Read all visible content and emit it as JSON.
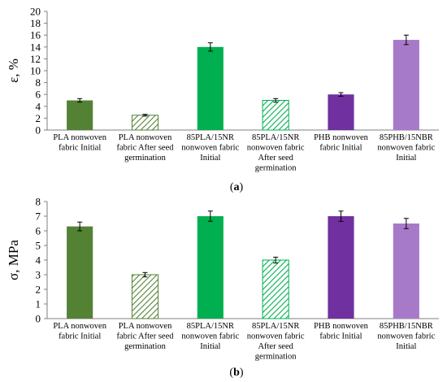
{
  "chart_data": [
    {
      "type": "bar",
      "panel_label": "(a)",
      "ylabel": "ε, %",
      "ylim": [
        0,
        20
      ],
      "ytick_step": 2,
      "grid": false,
      "categories": [
        [
          "PLA nonwoven",
          "fabric  Initial"
        ],
        [
          "PLA nonwoven",
          "fabric After seed",
          "germination"
        ],
        [
          "85PLA/15NR",
          "nonwoven fabric",
          "Initial"
        ],
        [
          "85PLA/15NR",
          "nonwoven fabric",
          "After seed",
          "germination"
        ],
        [
          "PHB nonwoven",
          "fabric  Initial"
        ],
        [
          "85PHB/15NBR",
          "nonwoven fabric",
          "Initial"
        ]
      ],
      "values": [
        5.0,
        2.5,
        14.0,
        5.0,
        6.0,
        15.2
      ],
      "errors": [
        0.3,
        0.15,
        0.7,
        0.3,
        0.3,
        0.8
      ]
    },
    {
      "type": "bar",
      "panel_label": "(b)",
      "ylabel": "σ, MPa",
      "ylim": [
        0,
        8
      ],
      "ytick_step": 1,
      "grid": false,
      "categories": [
        [
          "PLA nonwoven",
          "fabric  Initial"
        ],
        [
          "PLA nonwoven",
          "fabric After seed",
          "germination"
        ],
        [
          "85PLA/15NR",
          "nonwoven fabric",
          "Initial"
        ],
        [
          "85PLA/15NR",
          "nonwoven fabric",
          "After seed",
          "germination"
        ],
        [
          "PHB nonwoven",
          "fabric  Initial"
        ],
        [
          "85PHB/15NBR",
          "nonwoven fabric",
          "Initial"
        ]
      ],
      "values": [
        6.3,
        3.0,
        7.0,
        4.0,
        7.0,
        6.5
      ],
      "errors": [
        0.3,
        0.15,
        0.35,
        0.2,
        0.35,
        0.35
      ]
    }
  ],
  "bar_styles": [
    {
      "fill": "#548235",
      "pattern": false
    },
    {
      "fill": "#548235",
      "pattern": true
    },
    {
      "fill": "#00b050",
      "pattern": false
    },
    {
      "fill": "#00b050",
      "pattern": true
    },
    {
      "fill": "#7030a0",
      "pattern": false
    },
    {
      "fill": "#a77ac9",
      "pattern": false
    }
  ]
}
